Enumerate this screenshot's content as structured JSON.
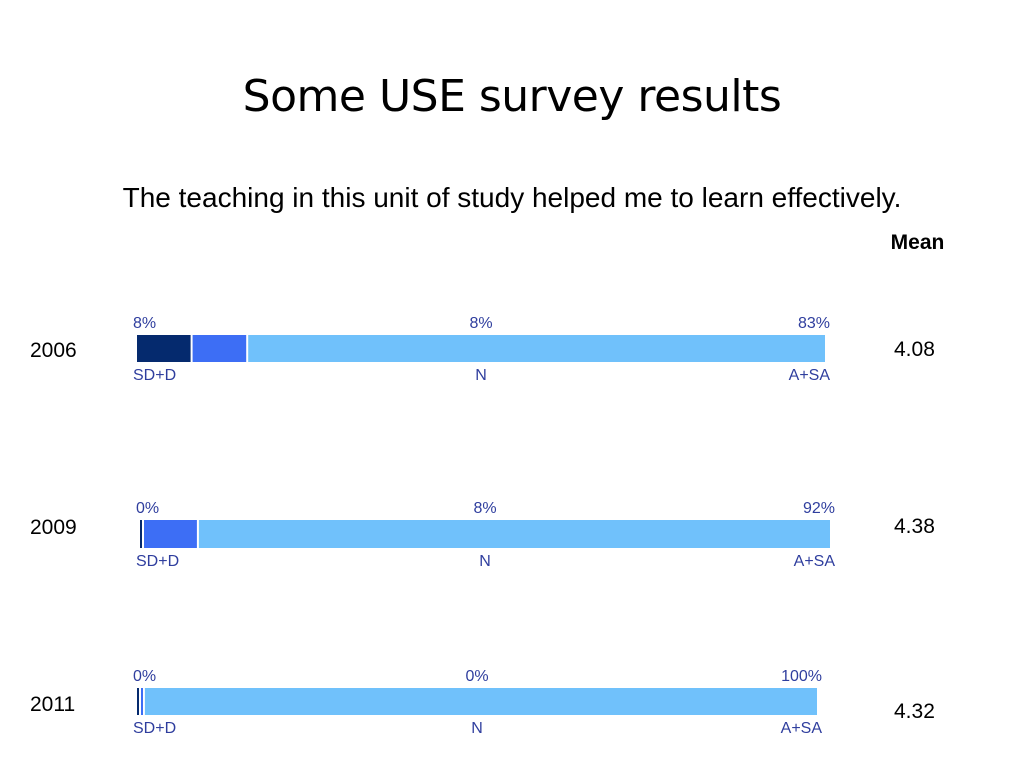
{
  "slide": {
    "title": "Some USE survey results",
    "question": "The teaching in this unit of study helped me to learn effectively.",
    "mean_header": "Mean"
  },
  "chart_data": {
    "type": "bar",
    "orientation": "horizontal-stacked",
    "categories": [
      "SD+D",
      "N",
      "A+SA"
    ],
    "colors": {
      "SD+D": "#052a6e",
      "N": "#3d6ef5",
      "A+SA": "#70c1fb",
      "label": "#2f3e9e"
    },
    "rows": [
      {
        "year": "2006",
        "mean": "4.08",
        "values": [
          8,
          8,
          83
        ],
        "labels": [
          "8%",
          "8%",
          "83%"
        ]
      },
      {
        "year": "2009",
        "mean": "4.38",
        "values": [
          0,
          8,
          92
        ],
        "labels": [
          "0%",
          "8%",
          "92%"
        ]
      },
      {
        "year": "2011",
        "mean": "4.32",
        "values": [
          0,
          0,
          100
        ],
        "labels": [
          "0%",
          "0%",
          "100%"
        ]
      }
    ],
    "xlim": [
      0,
      100
    ]
  }
}
